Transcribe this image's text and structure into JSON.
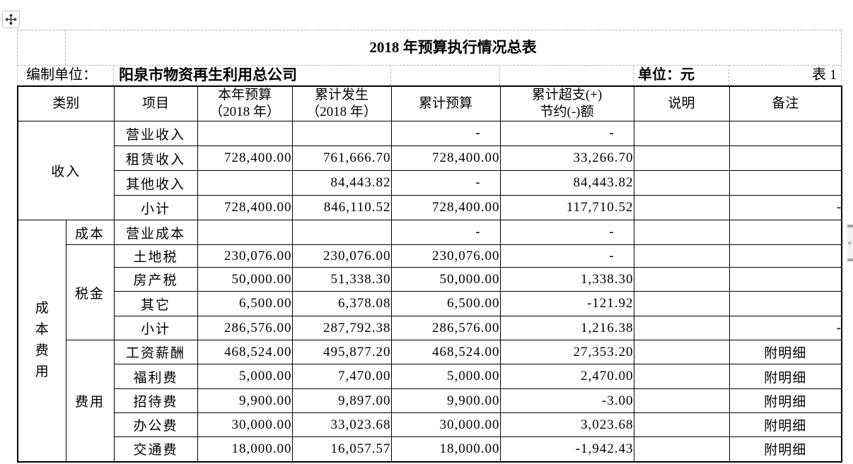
{
  "page": {
    "title": "2018 年预算执行情况总表"
  },
  "meta": {
    "prepared_by_label": "编制单位：",
    "prepared_by": "阳泉市物资再生利用总公司",
    "unit_label": "单位：元",
    "table_no": "表 1"
  },
  "icons": {
    "move_handle": "move-arrows-icon",
    "scrollbar": "scrollbar-thumb"
  },
  "colors": {
    "grid_solid": "#000000",
    "grid_dashed": "#b5b5b5",
    "text": "#000000",
    "scrollbar_cap": "#a3a3a3",
    "scrollbar_body": "#f1f1f1"
  },
  "table": {
    "headers": {
      "category": "类别",
      "item": "项目",
      "budget_year": "本年预算\n（2018 年）",
      "actual_year": "累计发生\n（2018 年）",
      "cum_budget": "累计预算",
      "variance": "累计超支(+)\n节约(-)额",
      "note": "说明",
      "remark": "备注"
    },
    "sections": [
      {
        "category": "收入",
        "vertical": false,
        "rows": [
          {
            "item": "营业收入",
            "budget": "",
            "actual": "",
            "cum_budget": "-",
            "variance": "-",
            "note": "",
            "remark": ""
          },
          {
            "item": "租赁收入",
            "budget": "728,400.00",
            "actual": "761,666.70",
            "cum_budget": "728,400.00",
            "variance": "33,266.70",
            "note": "",
            "remark": ""
          },
          {
            "item": "其他收入",
            "budget": "",
            "actual": "84,443.82",
            "cum_budget": "-",
            "variance": "84,443.82",
            "note": "",
            "remark": ""
          },
          {
            "item": "小计",
            "budget": "728,400.00",
            "actual": "846,110.52",
            "cum_budget": "728,400.00",
            "variance": "117,710.52",
            "note": "",
            "remark": "-"
          }
        ]
      },
      {
        "category": "成本费用",
        "vertical": true,
        "subsections": [
          {
            "label": "成本",
            "rows": [
              {
                "item": "营业成本",
                "budget": "",
                "actual": "",
                "cum_budget": "-",
                "variance": "-",
                "note": "",
                "remark": ""
              }
            ]
          },
          {
            "label": "税金",
            "rows": [
              {
                "item": "土地税",
                "budget": "230,076.00",
                "actual": "230,076.00",
                "cum_budget": "230,076.00",
                "variance": "-",
                "note": "",
                "remark": ""
              },
              {
                "item": "房产税",
                "budget": "50,000.00",
                "actual": "51,338.30",
                "cum_budget": "50,000.00",
                "variance": "1,338.30",
                "note": "",
                "remark": ""
              },
              {
                "item": "其它",
                "budget": "6,500.00",
                "actual": "6,378.08",
                "cum_budget": "6,500.00",
                "variance": "-121.92",
                "note": "",
                "remark": ""
              },
              {
                "item": "小计",
                "budget": "286,576.00",
                "actual": "287,792.38",
                "cum_budget": "286,576.00",
                "variance": "1,216.38",
                "note": "",
                "remark": "-"
              }
            ]
          },
          {
            "label": "费用",
            "rows": [
              {
                "item": "工资薪酬",
                "budget": "468,524.00",
                "actual": "495,877.20",
                "cum_budget": "468,524.00",
                "variance": "27,353.20",
                "note": "",
                "remark": "附明细"
              },
              {
                "item": "福利费",
                "budget": "5,000.00",
                "actual": "7,470.00",
                "cum_budget": "5,000.00",
                "variance": "2,470.00",
                "note": "",
                "remark": "附明细"
              },
              {
                "item": "招待费",
                "budget": "9,900.00",
                "actual": "9,897.00",
                "cum_budget": "9,900.00",
                "variance": "-3.00",
                "note": "",
                "remark": "附明细"
              },
              {
                "item": "办公费",
                "budget": "30,000.00",
                "actual": "33,023.68",
                "cum_budget": "30,000.00",
                "variance": "3,023.68",
                "note": "",
                "remark": "附明细"
              },
              {
                "item": "交通费",
                "budget": "18,000.00",
                "actual": "16,057.57",
                "cum_budget": "18,000.00",
                "variance": "-1,942.43",
                "note": "",
                "remark": "附明细"
              }
            ]
          }
        ]
      }
    ]
  }
}
